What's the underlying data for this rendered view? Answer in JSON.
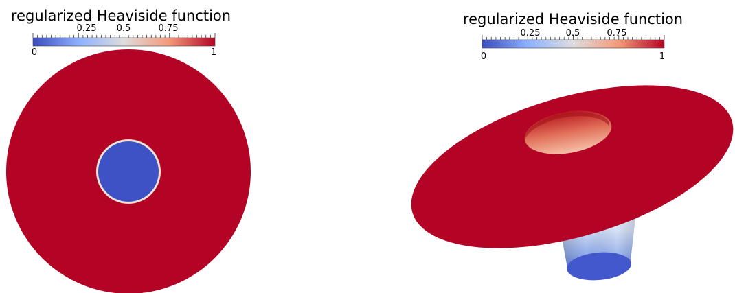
{
  "colorbar": {
    "title": "regularized Heaviside function",
    "min_label": "0",
    "max_label": "1",
    "tick_labels": [
      "0.25",
      "0.5",
      "0.75"
    ],
    "colormap": [
      "#3b4cc0",
      "#8db0fe",
      "#dddddd",
      "#f4987a",
      "#b40426"
    ]
  },
  "scene": {
    "outer_color": "#b40426",
    "inner_color": "#3e51c5",
    "rim_color": "#efe3d6"
  }
}
